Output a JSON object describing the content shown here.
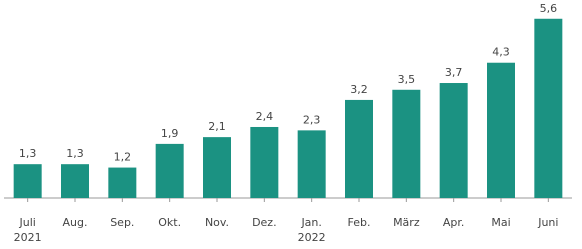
{
  "chart_data": {
    "type": "bar",
    "categories": [
      "Juli",
      "Aug.",
      "Sep.",
      "Okt.",
      "Nov.",
      "Dez.",
      "Jan.",
      "Feb.",
      "März",
      "Apr.",
      "Mai",
      "Juni"
    ],
    "category_sublabels": [
      "2021",
      null,
      null,
      null,
      null,
      null,
      "2022",
      null,
      null,
      null,
      null,
      null
    ],
    "values": [
      1.3,
      1.3,
      1.2,
      1.9,
      2.1,
      2.4,
      2.3,
      3.2,
      3.5,
      3.7,
      4.3,
      5.6
    ],
    "value_labels": [
      "1,3",
      "1,3",
      "1,2",
      "1,9",
      "2,1",
      "2,4",
      "2,3",
      "3,2",
      "3,5",
      "3,7",
      "4,3",
      "5,6"
    ],
    "color": "#1b9282",
    "ylim": [
      0.3,
      5.8
    ]
  }
}
